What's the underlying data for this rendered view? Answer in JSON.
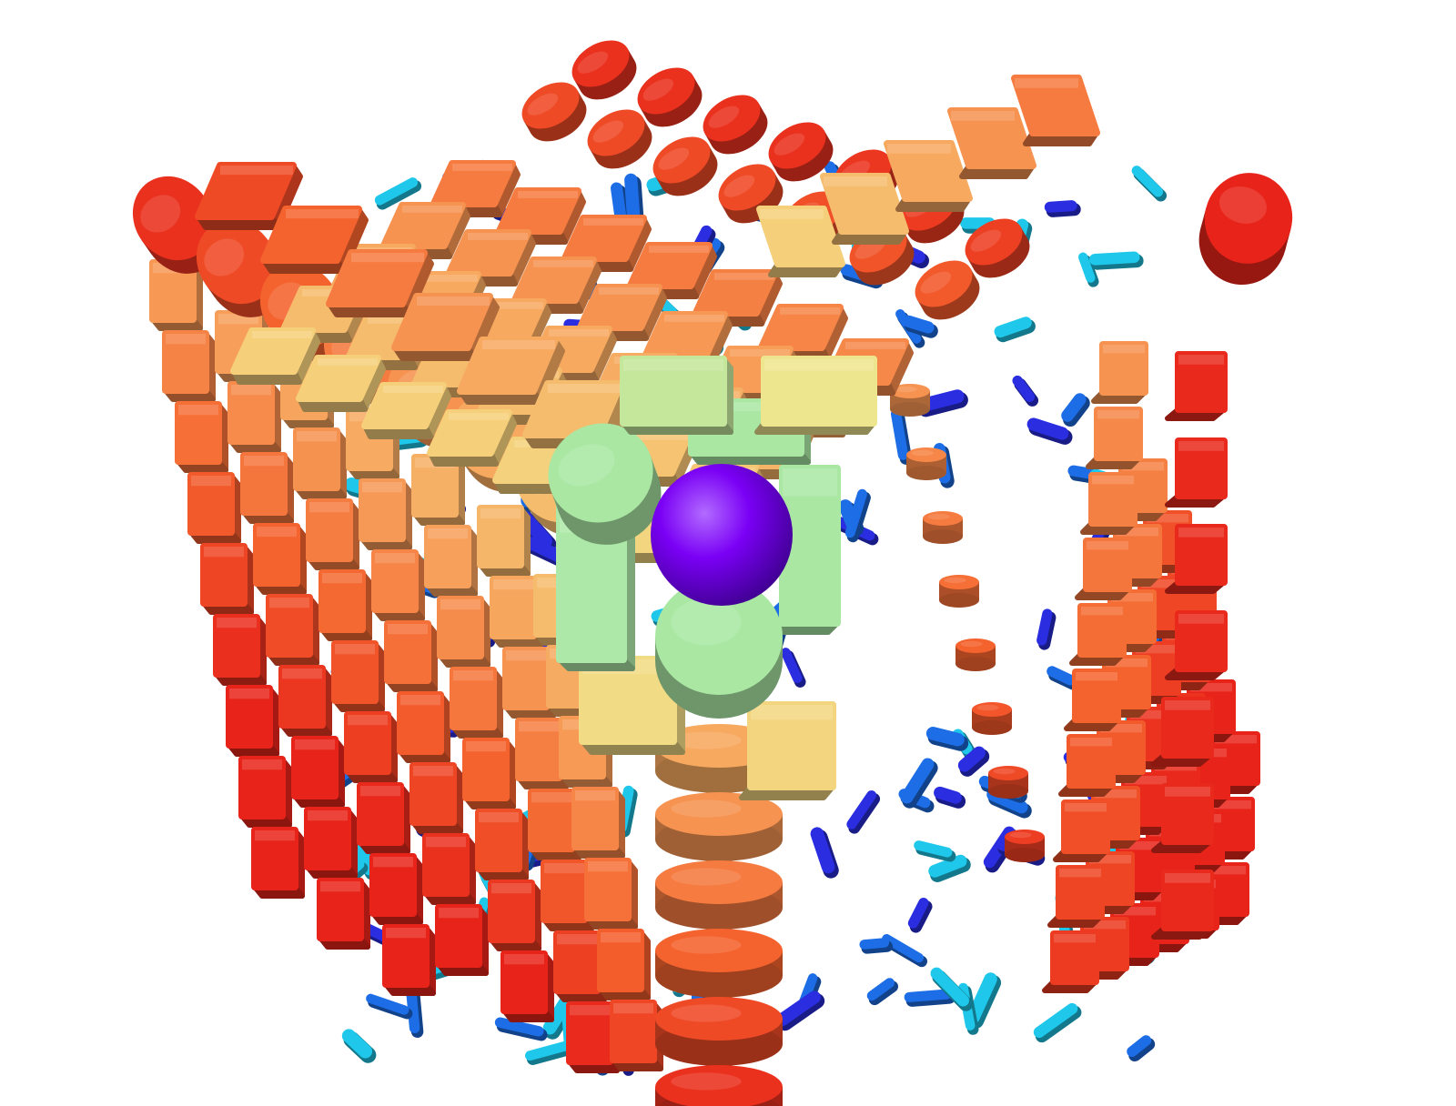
{
  "scene": {
    "kind": "3d-render",
    "background_color": "#ffffff",
    "subject": "cube-lattice-of-elements",
    "center_marker": {
      "shape": "sphere",
      "color": "#7a00f5"
    },
    "element_shapes": [
      "rounded-box",
      "disk",
      "cylinder"
    ],
    "palette": {
      "outer": "#e8241a",
      "outer_mid": "#f4632e",
      "mid": "#f79f5a",
      "inner_warm": "#f5cf7a",
      "inner_pale": "#eee68e",
      "core_green": "#a9e7a3",
      "interior_blue": "#1d6ee6",
      "interior_cyan": "#1fc8ea",
      "interior_indigo": "#2a2ee0"
    }
  }
}
